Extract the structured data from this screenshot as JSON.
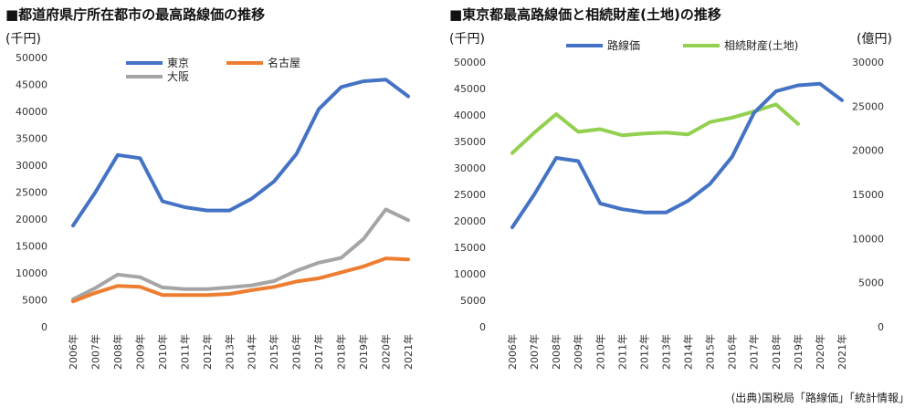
{
  "years": [
    "2006年",
    "2007年",
    "2008年",
    "2009年",
    "2010年",
    "2011年",
    "2012年",
    "2013年",
    "2014年",
    "2015年",
    "2016年",
    "2017年",
    "2018年",
    "2019年",
    "2020年",
    "2021年"
  ],
  "source": "(出典)国税局「路線価」「統計情報」",
  "chart_data": [
    {
      "type": "line",
      "title": "■都道府県庁所在都市の最高路線価の推移",
      "ylabel": "(千円)",
      "ylim": [
        0,
        50000
      ],
      "yticks": [
        0,
        5000,
        10000,
        15000,
        20000,
        25000,
        30000,
        35000,
        40000,
        45000,
        50000
      ],
      "grid": false,
      "legend_position": "top",
      "series": [
        {
          "name": "東京",
          "color": "#4472C4",
          "values": [
            18800,
            25000,
            31900,
            31300,
            23300,
            22200,
            21600,
            21600,
            23800,
            27000,
            32100,
            40400,
            44500,
            45600,
            45900,
            42800
          ]
        },
        {
          "name": "名古屋",
          "color": "#ED7D31",
          "values": [
            4700,
            6300,
            7600,
            7400,
            5900,
            5900,
            5900,
            6100,
            6800,
            7400,
            8400,
            9000,
            10100,
            11200,
            12700,
            12500
          ]
        },
        {
          "name": "大阪",
          "color": "#A5A5A5",
          "values": [
            5100,
            7200,
            9700,
            9200,
            7300,
            7000,
            7000,
            7300,
            7700,
            8500,
            10400,
            11900,
            12800,
            16300,
            21800,
            19800
          ]
        }
      ]
    },
    {
      "type": "line",
      "title": "■東京都最高路線価と相続財産(土地)の推移",
      "ylabel": "(千円)",
      "ylabel_right": "(億円)",
      "ylim": [
        0,
        50000
      ],
      "ylim_right": [
        0,
        30000
      ],
      "yticks": [
        0,
        5000,
        10000,
        15000,
        20000,
        25000,
        30000,
        35000,
        40000,
        45000,
        50000
      ],
      "yticks_right": [
        0,
        5000,
        10000,
        15000,
        20000,
        25000,
        30000
      ],
      "grid": false,
      "legend_position": "top",
      "series": [
        {
          "name": "路線価",
          "axis": "left",
          "color": "#4472C4",
          "values": [
            18800,
            25000,
            31900,
            31300,
            23300,
            22200,
            21600,
            21600,
            23800,
            27000,
            32100,
            40400,
            44500,
            45600,
            45900,
            42800
          ]
        },
        {
          "name": "相続財産(土地)",
          "axis": "right",
          "color": "#92D050",
          "values": [
            19700,
            22000,
            24100,
            22100,
            22400,
            21700,
            21900,
            22000,
            21800,
            23200,
            23700,
            24400,
            25200,
            23000,
            null,
            null
          ]
        }
      ]
    }
  ]
}
